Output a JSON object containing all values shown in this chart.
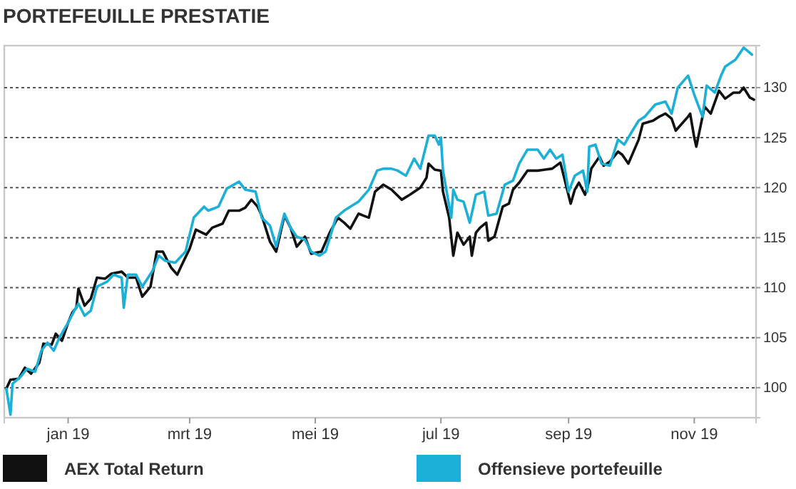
{
  "chart_data": {
    "type": "line",
    "title": "PORTEFEUILLE PRESTATIE",
    "xlim": [
      "2018-12-01",
      "2019-12-01"
    ],
    "xticks": [
      {
        "value": "2019-01-01",
        "label": "jan 19"
      },
      {
        "value": "2019-03-01",
        "label": "mrt 19"
      },
      {
        "value": "2019-05-01",
        "label": "mei 19"
      },
      {
        "value": "2019-07-01",
        "label": "jul 19"
      },
      {
        "value": "2019-09-01",
        "label": "sep 19"
      },
      {
        "value": "2019-11-01",
        "label": "nov 19"
      }
    ],
    "ylim": [
      97,
      134.2
    ],
    "yticks": [
      100,
      105,
      110,
      115,
      120,
      125,
      130
    ],
    "grid": "y",
    "legend": "bottom",
    "line_style": "solid",
    "marker": "none",
    "series": [
      {
        "name": "AEX Total Return",
        "color": "#111111",
        "x": [
          "2018-12-02",
          "2018-12-04",
          "2018-12-08",
          "2018-12-11",
          "2018-12-14",
          "2018-12-18",
          "2018-12-20",
          "2018-12-24",
          "2018-12-26",
          "2018-12-29",
          "2019-01-01",
          "2019-01-03",
          "2019-01-05",
          "2019-01-06",
          "2019-01-09",
          "2019-01-12",
          "2019-01-15",
          "2019-01-19",
          "2019-01-22",
          "2019-01-27",
          "2019-01-30",
          "2019-02-03",
          "2019-02-06",
          "2019-02-10",
          "2019-02-13",
          "2019-02-16",
          "2019-02-20",
          "2019-02-23",
          "2019-02-25",
          "2019-03-01",
          "2019-03-04",
          "2019-03-09",
          "2019-03-12",
          "2019-03-17",
          "2019-03-20",
          "2019-03-25",
          "2019-03-28",
          "2019-03-31",
          "2019-04-03",
          "2019-04-05",
          "2019-04-09",
          "2019-04-12",
          "2019-04-16",
          "2019-04-19",
          "2019-04-22",
          "2019-04-26",
          "2019-04-29",
          "2019-05-04",
          "2019-05-08",
          "2019-05-12",
          "2019-05-15",
          "2019-05-18",
          "2019-05-22",
          "2019-05-27",
          "2019-05-30",
          "2019-06-03",
          "2019-06-07",
          "2019-06-12",
          "2019-06-16",
          "2019-06-21",
          "2019-06-24",
          "2019-06-25",
          "2019-06-28",
          "2019-07-01",
          "2019-07-02",
          "2019-07-05",
          "2019-07-07",
          "2019-07-09",
          "2019-07-12",
          "2019-07-15",
          "2019-07-16",
          "2019-07-18",
          "2019-07-20",
          "2019-07-23",
          "2019-07-24",
          "2019-07-27",
          "2019-07-31",
          "2019-08-03",
          "2019-08-05",
          "2019-08-08",
          "2019-08-12",
          "2019-08-17",
          "2019-08-24",
          "2019-08-26",
          "2019-08-28",
          "2019-09-02",
          "2019-09-04",
          "2019-09-06",
          "2019-09-09",
          "2019-09-11",
          "2019-09-12",
          "2019-09-16",
          "2019-09-18",
          "2019-09-21",
          "2019-09-25",
          "2019-09-27",
          "2019-09-30",
          "2019-10-05",
          "2019-10-07",
          "2019-10-12",
          "2019-10-15",
          "2019-10-18",
          "2019-10-21",
          "2019-10-23",
          "2019-10-29",
          "2019-10-30",
          "2019-11-01",
          "2019-11-02",
          "2019-11-06",
          "2019-11-09",
          "2019-11-13",
          "2019-11-16",
          "2019-11-20",
          "2019-11-23",
          "2019-11-25",
          "2019-11-28",
          "2019-11-30"
        ],
        "values": [
          99.9,
          100.8,
          100.9,
          102.0,
          101.4,
          102.5,
          104.4,
          104.3,
          105.4,
          104.7,
          106.5,
          107.5,
          108.0,
          109.9,
          108.2,
          108.9,
          111.0,
          110.9,
          111.4,
          111.6,
          111.0,
          111.0,
          109.1,
          110.1,
          113.6,
          113.6,
          112.0,
          111.3,
          112.2,
          113.9,
          115.8,
          115.3,
          116.0,
          116.4,
          117.7,
          117.7,
          118.0,
          118.8,
          118.1,
          117.2,
          114.6,
          113.6,
          117.2,
          116.0,
          114.1,
          115.1,
          113.4,
          113.6,
          115.5,
          117.0,
          116.5,
          115.9,
          117.4,
          117.0,
          119.6,
          120.3,
          119.8,
          118.8,
          119.3,
          120.0,
          121.0,
          122.4,
          121.8,
          121.7,
          119.6,
          117.0,
          113.2,
          115.5,
          114.3,
          115.1,
          113.2,
          115.5,
          116.0,
          116.5,
          114.7,
          115.1,
          118.1,
          118.4,
          119.8,
          120.5,
          121.7,
          121.7,
          121.9,
          122.2,
          122.5,
          118.4,
          119.8,
          120.5,
          119.3,
          120.7,
          121.9,
          123.1,
          122.2,
          122.6,
          123.6,
          123.3,
          122.4,
          124.8,
          126.4,
          126.7,
          127.1,
          127.4,
          126.9,
          125.7,
          127.1,
          127.4,
          125.0,
          124.1,
          128.1,
          127.4,
          129.7,
          128.9,
          129.5,
          129.5,
          130.0,
          129.0,
          128.8
        ]
      },
      {
        "name": "Offensieve portefeuille",
        "color": "#1ab0d8",
        "x": [
          "2018-12-02",
          "2018-12-04",
          "2018-12-05",
          "2018-12-09",
          "2018-12-12",
          "2018-12-16",
          "2018-12-19",
          "2018-12-22",
          "2018-12-25",
          "2018-12-28",
          "2019-01-01",
          "2019-01-04",
          "2019-01-06",
          "2019-01-09",
          "2019-01-12",
          "2019-01-15",
          "2019-01-20",
          "2019-01-23",
          "2019-01-27",
          "2019-01-28",
          "2019-01-30",
          "2019-02-03",
          "2019-02-06",
          "2019-02-11",
          "2019-02-14",
          "2019-02-17",
          "2019-02-22",
          "2019-02-27",
          "2019-03-03",
          "2019-03-08",
          "2019-03-10",
          "2019-03-15",
          "2019-03-19",
          "2019-03-25",
          "2019-03-28",
          "2019-04-02",
          "2019-04-05",
          "2019-04-09",
          "2019-04-12",
          "2019-04-16",
          "2019-04-19",
          "2019-04-22",
          "2019-04-26",
          "2019-04-29",
          "2019-05-03",
          "2019-05-06",
          "2019-05-11",
          "2019-05-15",
          "2019-05-18",
          "2019-05-22",
          "2019-05-27",
          "2019-05-31",
          "2019-06-03",
          "2019-06-07",
          "2019-06-10",
          "2019-06-14",
          "2019-06-18",
          "2019-06-21",
          "2019-06-25",
          "2019-06-28",
          "2019-06-30",
          "2019-07-01",
          "2019-07-02",
          "2019-07-06",
          "2019-07-07",
          "2019-07-09",
          "2019-07-12",
          "2019-07-15",
          "2019-07-18",
          "2019-07-22",
          "2019-07-24",
          "2019-07-28",
          "2019-08-01",
          "2019-08-05",
          "2019-08-08",
          "2019-08-12",
          "2019-08-17",
          "2019-08-20",
          "2019-08-23",
          "2019-08-26",
          "2019-08-29",
          "2019-09-01",
          "2019-09-04",
          "2019-09-08",
          "2019-09-10",
          "2019-09-11",
          "2019-09-14",
          "2019-09-17",
          "2019-09-21",
          "2019-09-25",
          "2019-09-28",
          "2019-10-02",
          "2019-10-05",
          "2019-10-08",
          "2019-10-13",
          "2019-10-18",
          "2019-10-21",
          "2019-10-24",
          "2019-10-29",
          "2019-11-01",
          "2019-11-05",
          "2019-11-07",
          "2019-11-11",
          "2019-11-14",
          "2019-11-16",
          "2019-11-21",
          "2019-11-25",
          "2019-11-29"
        ],
        "values": [
          99.9,
          97.3,
          100.4,
          101.1,
          101.9,
          101.6,
          103.7,
          104.5,
          103.7,
          105.1,
          106.5,
          107.7,
          108.4,
          107.2,
          107.7,
          110.1,
          110.6,
          111.3,
          111.0,
          108.0,
          111.3,
          111.3,
          110.1,
          111.7,
          113.2,
          112.7,
          112.5,
          113.6,
          117.0,
          118.1,
          117.7,
          118.1,
          119.9,
          120.6,
          119.8,
          119.6,
          117.0,
          116.2,
          114.1,
          117.4,
          116.0,
          115.1,
          114.8,
          113.6,
          113.2,
          113.6,
          117.0,
          117.7,
          118.1,
          118.6,
          119.8,
          121.7,
          121.9,
          121.9,
          121.7,
          121.2,
          122.9,
          121.9,
          125.2,
          125.2,
          124.3,
          125.0,
          121.7,
          117.0,
          119.8,
          118.8,
          118.6,
          116.5,
          119.3,
          119.6,
          117.2,
          117.4,
          120.3,
          120.7,
          122.4,
          123.8,
          123.8,
          122.9,
          123.8,
          122.9,
          123.3,
          119.6,
          121.2,
          121.7,
          119.6,
          124.1,
          124.3,
          122.4,
          122.2,
          124.8,
          124.3,
          125.7,
          126.7,
          127.1,
          128.3,
          128.6,
          127.4,
          130.0,
          131.2,
          129.3,
          127.1,
          130.2,
          129.5,
          131.2,
          132.1,
          132.8,
          134.0,
          133.3
        ]
      }
    ]
  }
}
